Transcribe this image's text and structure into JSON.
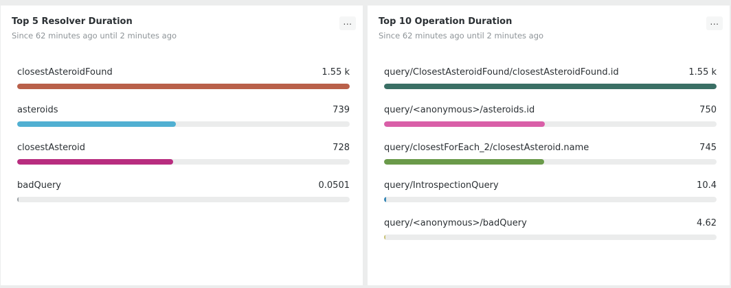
{
  "panels": [
    {
      "title": "Top 5 Resolver Duration",
      "subtitle": "Since 62 minutes ago until 2 minutes ago",
      "menu_label": "...",
      "max_value": 1550,
      "items": [
        {
          "label": "closestAsteroidFound",
          "value_text": "1.55 k",
          "value": 1550,
          "color": "#b9604a"
        },
        {
          "label": "asteroids",
          "value_text": "739",
          "value": 739,
          "color": "#51b0d2"
        },
        {
          "label": "closestAsteroid",
          "value_text": "728",
          "value": 728,
          "color": "#b82d7f"
        },
        {
          "label": "badQuery",
          "value_text": "0.0501",
          "value": 0.0501,
          "color": "#9aa0a4"
        }
      ]
    },
    {
      "title": "Top 10 Operation Duration",
      "subtitle": "Since 62 minutes ago until 2 minutes ago",
      "menu_label": "...",
      "max_value": 1550,
      "items": [
        {
          "label": "query/ClosestAsteroidFound/closestAsteroidFound.id",
          "value_text": "1.55 k",
          "value": 1550,
          "color": "#3a6f65"
        },
        {
          "label": "query/<anonymous>/asteroids.id",
          "value_text": "750",
          "value": 750,
          "color": "#d95fa8"
        },
        {
          "label": "query/closestForEach_2/closestAsteroid.name",
          "value_text": "745",
          "value": 745,
          "color": "#6a9a4a"
        },
        {
          "label": "query/IntrospectionQuery",
          "value_text": "10.4",
          "value": 10.4,
          "color": "#3a88b6"
        },
        {
          "label": "query/<anonymous>/badQuery",
          "value_text": "4.62",
          "value": 4.62,
          "color": "#c8c070"
        }
      ]
    }
  ]
}
